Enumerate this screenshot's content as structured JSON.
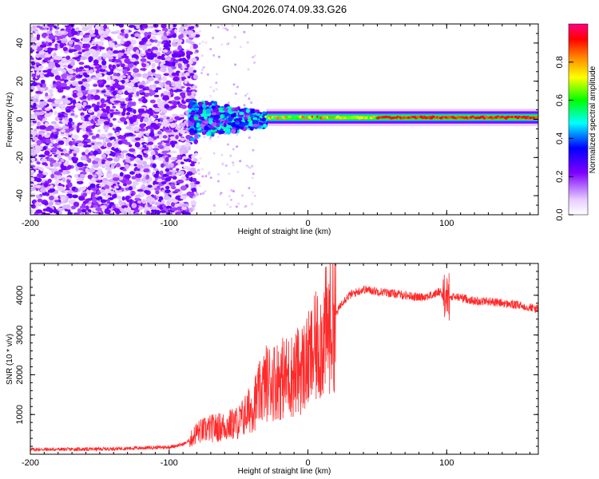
{
  "chart_data": [
    {
      "type": "heatmap",
      "title": "GN04.2026.074.09.33.G26",
      "xlabel": "Height of straight line (km)",
      "ylabel": "Frequency (Hz)",
      "xlim": [
        -200,
        166
      ],
      "ylim": [
        -50,
        50
      ],
      "xticks": [
        -200,
        -100,
        0,
        100
      ],
      "yticks": [
        -40,
        -20,
        0,
        20,
        40
      ],
      "colorbar": {
        "label": "Normalized spectral amplitude",
        "range": [
          0,
          1
        ],
        "ticks": [
          "0.0",
          "0.2",
          "0.4",
          "0.6",
          "0.8"
        ],
        "colors": [
          "#ffffff",
          "#e6ccff",
          "#7f00ff",
          "#0000ff",
          "#00ffff",
          "#00ff00",
          "#ffff00",
          "#ff8000",
          "#ff0000",
          "#ff0080"
        ]
      },
      "regions": [
        {
          "name": "noise",
          "x_range": [
            -200,
            -83
          ],
          "freq_range": [
            -50,
            50
          ],
          "amplitude": 0.15
        },
        {
          "name": "turbulent-band",
          "x_range": [
            -85,
            -30
          ],
          "freq_range": [
            -12,
            10
          ],
          "amplitude": 0.4
        },
        {
          "name": "tracking-band",
          "x_range": [
            -30,
            166
          ],
          "freq_center": 1,
          "freq_halfwidth": 3,
          "amplitude": 0.9
        }
      ]
    },
    {
      "type": "line",
      "title": "",
      "xlabel": "Height of straight line (km)",
      "ylabel": "SNR (10 * v/v)",
      "xlim": [
        -200,
        166
      ],
      "ylim": [
        0,
        4800
      ],
      "xticks": [
        -200,
        -100,
        0,
        100
      ],
      "yticks": [
        1000,
        2000,
        3000,
        4000
      ],
      "color": "#ff2a2a",
      "series": [
        {
          "name": "SNR envelope",
          "x": [
            -200,
            -150,
            -100,
            -90,
            -85,
            -80,
            -70,
            -60,
            -50,
            -40,
            -30,
            -20,
            -10,
            0,
            10,
            20,
            25,
            30,
            40,
            50,
            60,
            70,
            80,
            90,
            95,
            100,
            105,
            110,
            120,
            130,
            140,
            150,
            160,
            166
          ],
          "y": [
            120,
            130,
            180,
            250,
            350,
            550,
            650,
            700,
            800,
            1200,
            1800,
            1900,
            2000,
            2300,
            2900,
            3500,
            3850,
            4000,
            4150,
            4100,
            4050,
            4000,
            3950,
            4000,
            4100,
            3900,
            3950,
            3950,
            3850,
            3850,
            3800,
            3750,
            3700,
            3650
          ]
        }
      ]
    }
  ]
}
